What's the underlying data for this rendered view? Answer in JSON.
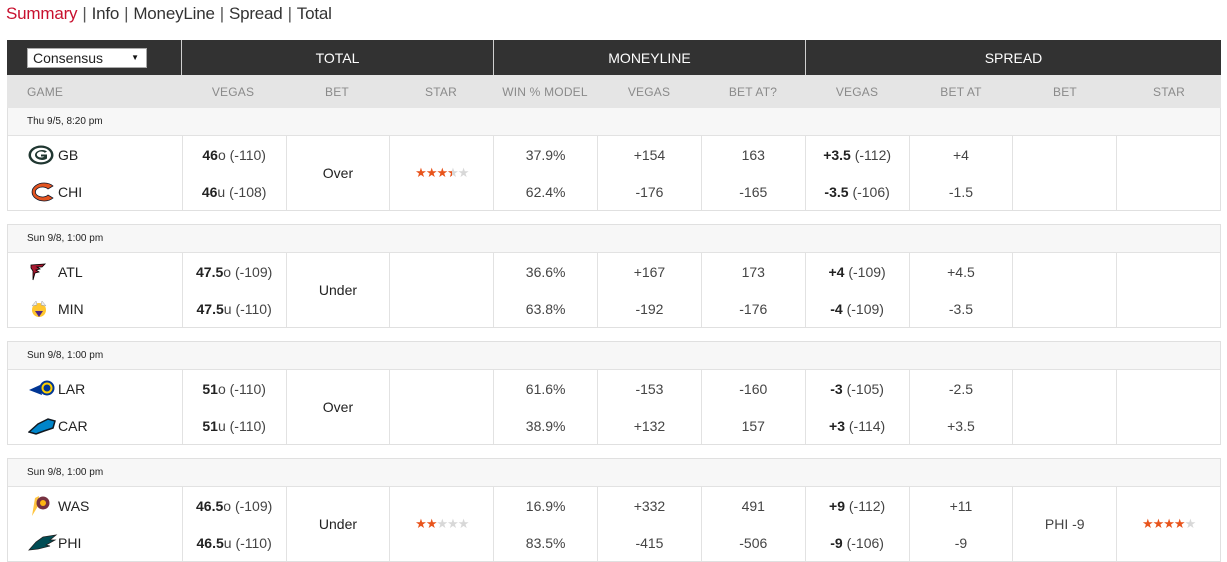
{
  "nav": {
    "items": [
      {
        "label": "Summary",
        "active": true
      },
      {
        "label": "Info",
        "active": false
      },
      {
        "label": "MoneyLine",
        "active": false
      },
      {
        "label": "Spread",
        "active": false
      },
      {
        "label": "Total",
        "active": false
      }
    ],
    "separator": "|",
    "active_color": "#c8102e"
  },
  "table": {
    "source_select": {
      "value": "Consensus",
      "caret": "▼"
    },
    "groups": {
      "total": "TOTAL",
      "moneyline": "MONEYLINE",
      "spread": "SPREAD"
    },
    "columns": [
      "GAME",
      "VEGAS",
      "BET",
      "STAR",
      "WIN % MODEL",
      "VEGAS",
      "BET AT?",
      "VEGAS",
      "BET AT",
      "BET",
      "STAR"
    ],
    "star_color": "#e8541c"
  },
  "games": [
    {
      "date": "Thu 9/5, 8:20 pm",
      "teams": [
        {
          "abbr": "GB",
          "logo": "packers-logo",
          "total_num": "46",
          "total_side": "o",
          "total_odds": "(-110)",
          "win_pct": "37.9%",
          "ml_vegas": "+154",
          "ml_bet_at": "163",
          "spread_num": "+3.5",
          "spread_odds": "(-112)",
          "spread_bet_at": "+4"
        },
        {
          "abbr": "CHI",
          "logo": "bears-logo",
          "total_num": "46",
          "total_side": "u",
          "total_odds": "(-108)",
          "win_pct": "62.4%",
          "ml_vegas": "-176",
          "ml_bet_at": "-165",
          "spread_num": "-3.5",
          "spread_odds": "(-106)",
          "spread_bet_at": "-1.5"
        }
      ],
      "total_bet": "Over",
      "total_star": 3.5,
      "spread_bet": "",
      "spread_star": 0
    },
    {
      "date": "Sun 9/8, 1:00 pm",
      "teams": [
        {
          "abbr": "ATL",
          "logo": "falcons-logo",
          "total_num": "47.5",
          "total_side": "o",
          "total_odds": "(-109)",
          "win_pct": "36.6%",
          "ml_vegas": "+167",
          "ml_bet_at": "173",
          "spread_num": "+4",
          "spread_odds": "(-109)",
          "spread_bet_at": "+4.5"
        },
        {
          "abbr": "MIN",
          "logo": "vikings-logo",
          "total_num": "47.5",
          "total_side": "u",
          "total_odds": "(-110)",
          "win_pct": "63.8%",
          "ml_vegas": "-192",
          "ml_bet_at": "-176",
          "spread_num": "-4",
          "spread_odds": "(-109)",
          "spread_bet_at": "-3.5"
        }
      ],
      "total_bet": "Under",
      "total_star": 0,
      "spread_bet": "",
      "spread_star": 0
    },
    {
      "date": "Sun 9/8, 1:00 pm",
      "teams": [
        {
          "abbr": "LAR",
          "logo": "rams-logo",
          "total_num": "51",
          "total_side": "o",
          "total_odds": "(-110)",
          "win_pct": "61.6%",
          "ml_vegas": "-153",
          "ml_bet_at": "-160",
          "spread_num": "-3",
          "spread_odds": "(-105)",
          "spread_bet_at": "-2.5"
        },
        {
          "abbr": "CAR",
          "logo": "panthers-logo",
          "total_num": "51",
          "total_side": "u",
          "total_odds": "(-110)",
          "win_pct": "38.9%",
          "ml_vegas": "+132",
          "ml_bet_at": "157",
          "spread_num": "+3",
          "spread_odds": "(-114)",
          "spread_bet_at": "+3.5"
        }
      ],
      "total_bet": "Over",
      "total_star": 0,
      "spread_bet": "",
      "spread_star": 0
    },
    {
      "date": "Sun 9/8, 1:00 pm",
      "teams": [
        {
          "abbr": "WAS",
          "logo": "redskins-logo",
          "total_num": "46.5",
          "total_side": "o",
          "total_odds": "(-109)",
          "win_pct": "16.9%",
          "ml_vegas": "+332",
          "ml_bet_at": "491",
          "spread_num": "+9",
          "spread_odds": "(-112)",
          "spread_bet_at": "+11"
        },
        {
          "abbr": "PHI",
          "logo": "eagles-logo",
          "total_num": "46.5",
          "total_side": "u",
          "total_odds": "(-110)",
          "win_pct": "83.5%",
          "ml_vegas": "-415",
          "ml_bet_at": "-506",
          "spread_num": "-9",
          "spread_odds": "(-106)",
          "spread_bet_at": "-9"
        }
      ],
      "total_bet": "Under",
      "total_star": 2,
      "spread_bet": "PHI -9",
      "spread_star": 4
    }
  ]
}
